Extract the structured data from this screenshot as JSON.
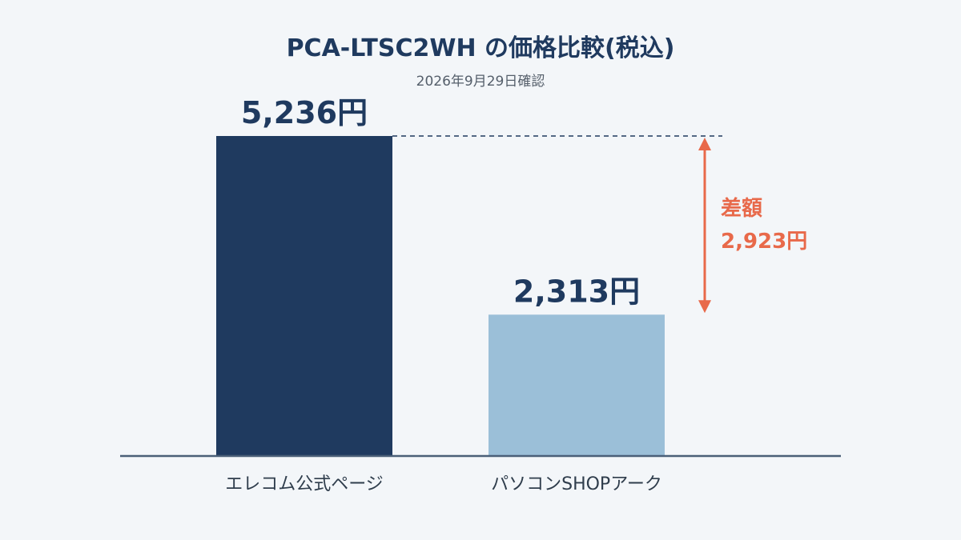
{
  "chart_data": {
    "type": "bar",
    "title": "PCA-LTSC2WH の価格比較(税込)",
    "subtitle": "2026年9月29日確認",
    "categories": [
      "エレコム公式ページ",
      "パソコンSHOPアーク"
    ],
    "values": [
      5236,
      2313
    ],
    "value_labels": [
      "5,236円",
      "2,313円"
    ],
    "colors": [
      "#1f3a5f",
      "#9bbfd8"
    ],
    "ylim": [
      0,
      5236
    ],
    "grid": false,
    "difference": {
      "label": "差額",
      "value": 2923,
      "value_label": "2,923円",
      "color": "#e8694a"
    },
    "axis_color": "#4a5f78"
  }
}
